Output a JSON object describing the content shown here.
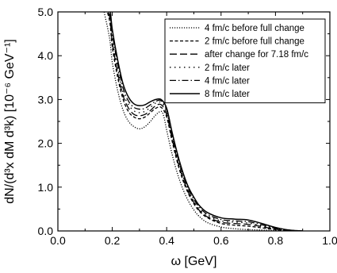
{
  "chart_data": {
    "type": "line",
    "title": "",
    "xlabel": "ω [GeV]",
    "ylabel": "dN/(d³x dM d³k) [10⁻⁶ GeV⁻¹]",
    "xlim": [
      0.0,
      1.0
    ],
    "ylim": [
      0.0,
      5.0
    ],
    "xticks": [
      "0.0",
      "0.2",
      "0.4",
      "0.6",
      "0.8",
      "1.0"
    ],
    "yticks": [
      "0.0",
      "1.0",
      "2.0",
      "3.0",
      "4.0",
      "5.0"
    ],
    "grid": false,
    "legend_position": "top-right",
    "series": [
      {
        "name": "4 fm/c before full change",
        "style": "dotted-fine",
        "x": [
          0.17,
          0.19,
          0.2,
          0.22,
          0.24,
          0.26,
          0.28,
          0.3,
          0.32,
          0.34,
          0.36,
          0.38,
          0.39,
          0.4,
          0.42,
          0.44,
          0.46,
          0.48,
          0.5,
          0.52,
          0.55,
          0.6,
          0.65,
          0.7,
          0.75,
          0.8,
          0.85,
          0.9
        ],
        "y": [
          5.0,
          4.4,
          3.85,
          3.2,
          2.75,
          2.5,
          2.38,
          2.33,
          2.38,
          2.5,
          2.65,
          2.73,
          2.6,
          2.3,
          1.75,
          1.3,
          0.95,
          0.68,
          0.48,
          0.33,
          0.19,
          0.09,
          0.05,
          0.03,
          0.02,
          0.01,
          0.005,
          0.0
        ]
      },
      {
        "name": "2 fm/c before full change",
        "style": "dashed-short",
        "x": [
          0.17,
          0.19,
          0.2,
          0.22,
          0.24,
          0.26,
          0.28,
          0.3,
          0.32,
          0.34,
          0.36,
          0.38,
          0.4,
          0.42,
          0.44,
          0.46,
          0.48,
          0.5,
          0.52,
          0.55,
          0.6,
          0.65,
          0.7,
          0.75,
          0.8,
          0.85,
          0.9
        ],
        "y": [
          5.2,
          4.8,
          4.2,
          3.5,
          3.0,
          2.72,
          2.6,
          2.56,
          2.6,
          2.7,
          2.8,
          2.82,
          2.6,
          2.05,
          1.55,
          1.15,
          0.85,
          0.62,
          0.45,
          0.3,
          0.17,
          0.13,
          0.11,
          0.07,
          0.03,
          0.01,
          0.0
        ]
      },
      {
        "name": "after change for 7.18 fm/c",
        "style": "dashed-long",
        "x": [
          0.17,
          0.19,
          0.2,
          0.22,
          0.24,
          0.26,
          0.28,
          0.3,
          0.32,
          0.34,
          0.36,
          0.38,
          0.4,
          0.42,
          0.44,
          0.46,
          0.48,
          0.5,
          0.52,
          0.55,
          0.6,
          0.65,
          0.7,
          0.75,
          0.8,
          0.85,
          0.9
        ],
        "y": [
          5.2,
          4.9,
          4.3,
          3.6,
          3.08,
          2.8,
          2.66,
          2.63,
          2.66,
          2.75,
          2.86,
          2.88,
          2.66,
          2.1,
          1.6,
          1.2,
          0.88,
          0.65,
          0.47,
          0.32,
          0.2,
          0.17,
          0.15,
          0.1,
          0.04,
          0.01,
          0.0
        ]
      },
      {
        "name": "2 fm/c later",
        "style": "dotted-sparse",
        "x": [
          0.17,
          0.19,
          0.2,
          0.22,
          0.24,
          0.26,
          0.28,
          0.3,
          0.32,
          0.34,
          0.36,
          0.38,
          0.4,
          0.42,
          0.44,
          0.46,
          0.48,
          0.5,
          0.52,
          0.55,
          0.6,
          0.65,
          0.7,
          0.75,
          0.8,
          0.85,
          0.9
        ],
        "y": [
          5.2,
          5.0,
          4.4,
          3.7,
          3.15,
          2.88,
          2.74,
          2.7,
          2.73,
          2.82,
          2.92,
          2.93,
          2.72,
          2.15,
          1.65,
          1.24,
          0.92,
          0.68,
          0.5,
          0.35,
          0.23,
          0.2,
          0.18,
          0.12,
          0.05,
          0.01,
          0.0
        ]
      },
      {
        "name": "4 fm/c later",
        "style": "dash-dot",
        "x": [
          0.17,
          0.19,
          0.2,
          0.22,
          0.24,
          0.26,
          0.28,
          0.3,
          0.32,
          0.34,
          0.36,
          0.38,
          0.4,
          0.42,
          0.44,
          0.46,
          0.48,
          0.5,
          0.52,
          0.55,
          0.6,
          0.65,
          0.7,
          0.75,
          0.8,
          0.85,
          0.9
        ],
        "y": [
          5.2,
          5.0,
          4.5,
          3.8,
          3.25,
          2.96,
          2.82,
          2.78,
          2.8,
          2.88,
          2.96,
          2.97,
          2.76,
          2.2,
          1.7,
          1.28,
          0.95,
          0.72,
          0.54,
          0.38,
          0.26,
          0.23,
          0.21,
          0.14,
          0.06,
          0.02,
          0.0
        ]
      },
      {
        "name": "8 fm/c later",
        "style": "solid",
        "x": [
          0.17,
          0.19,
          0.2,
          0.22,
          0.24,
          0.26,
          0.28,
          0.3,
          0.32,
          0.34,
          0.36,
          0.38,
          0.4,
          0.42,
          0.44,
          0.46,
          0.48,
          0.5,
          0.52,
          0.55,
          0.6,
          0.65,
          0.7,
          0.75,
          0.8,
          0.85,
          0.9
        ],
        "y": [
          5.2,
          5.1,
          4.6,
          3.9,
          3.35,
          3.05,
          2.9,
          2.86,
          2.88,
          2.95,
          3.0,
          3.0,
          2.8,
          2.25,
          1.75,
          1.33,
          1.0,
          0.77,
          0.58,
          0.42,
          0.3,
          0.27,
          0.25,
          0.17,
          0.08,
          0.02,
          0.0
        ]
      }
    ]
  }
}
